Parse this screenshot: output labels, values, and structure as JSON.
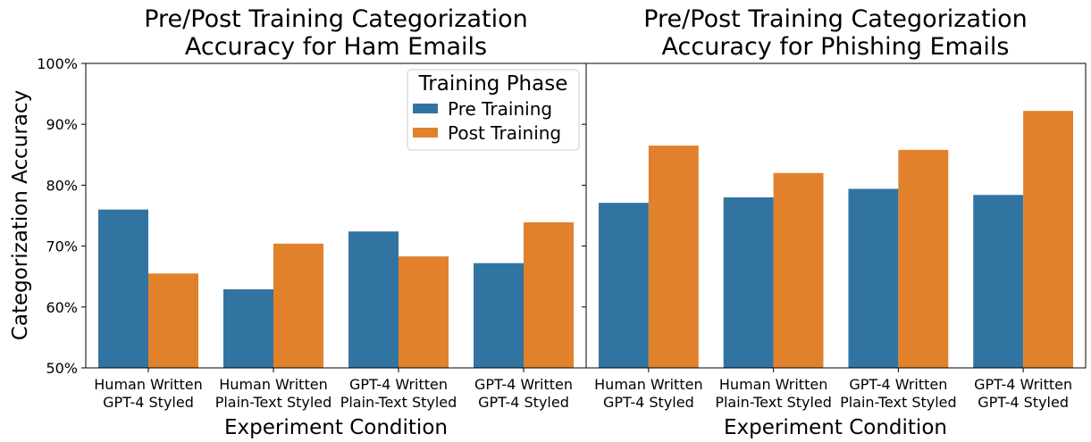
{
  "colors": {
    "pre": "#3274a1",
    "post": "#e1812c"
  },
  "chart_data": {
    "type": "bar",
    "ylabel": "Categorization Accuracy",
    "ylim": [
      50,
      100
    ],
    "yticks": [
      "50%",
      "60%",
      "70%",
      "80%",
      "90%",
      "100%"
    ],
    "legend": {
      "title": "Training Phase",
      "placement": "top-right of left panel",
      "entries": [
        "Pre Training",
        "Post Training"
      ]
    },
    "panels": [
      {
        "title_line1": "Pre/Post Training Categorization",
        "title_line2": "Accuracy for Ham Emails",
        "xlabel": "Experiment Condition",
        "categories": [
          [
            "Human Written",
            "GPT-4 Styled"
          ],
          [
            "Human Written",
            "Plain-Text Styled"
          ],
          [
            "GPT-4 Written",
            "Plain-Text Styled"
          ],
          [
            "GPT-4 Written",
            "GPT-4 Styled"
          ]
        ],
        "series": [
          {
            "name": "Pre Training",
            "values": [
              76.0,
              62.9,
              72.4,
              67.2
            ]
          },
          {
            "name": "Post Training",
            "values": [
              65.5,
              70.4,
              68.3,
              73.9
            ]
          }
        ]
      },
      {
        "title_line1": "Pre/Post Training Categorization",
        "title_line2": "Accuracy for Phishing Emails",
        "xlabel": "Experiment Condition",
        "categories": [
          [
            "Human Written",
            "GPT-4 Styled"
          ],
          [
            "Human Written",
            "Plain-Text Styled"
          ],
          [
            "GPT-4 Written",
            "Plain-Text Styled"
          ],
          [
            "GPT-4 Written",
            "GPT-4 Styled"
          ]
        ],
        "series": [
          {
            "name": "Pre Training",
            "values": [
              77.1,
              78.0,
              79.4,
              78.4
            ]
          },
          {
            "name": "Post Training",
            "values": [
              86.5,
              82.0,
              85.8,
              92.2
            ]
          }
        ]
      }
    ]
  }
}
